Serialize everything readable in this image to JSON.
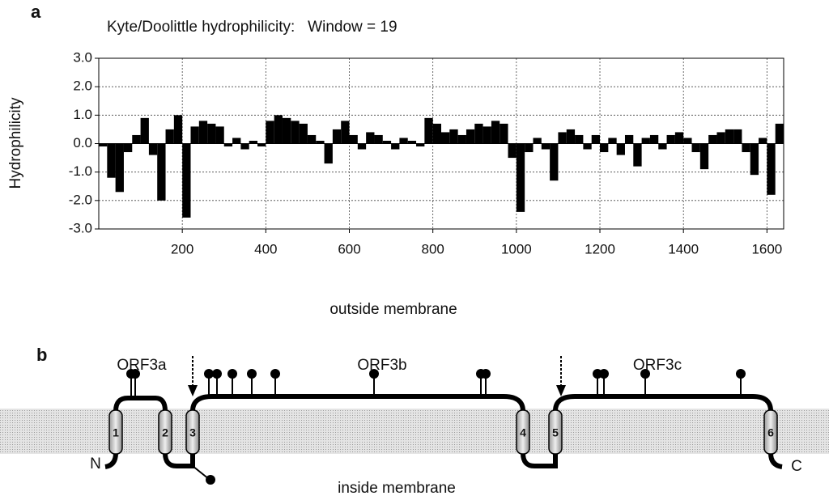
{
  "chart_data": {
    "type": "bar",
    "panel_label": "a",
    "title": "Kyte/Doolittle hydrophilicity:   Window = 19",
    "y_label": "Hydrophilicity",
    "color": "#000000",
    "grid": true,
    "xlim": [
      0,
      1640
    ],
    "xticks": [
      200,
      400,
      600,
      800,
      1000,
      1200,
      1400,
      1600
    ],
    "ylim": [
      -3,
      3
    ],
    "yticks": [
      {
        "value": -3,
        "label": "-3.0"
      },
      {
        "value": -2,
        "label": "-2.0"
      },
      {
        "value": -1,
        "label": "-1.0"
      },
      {
        "value": 0,
        "label": "0.0"
      },
      {
        "value": 1,
        "label": "1.0"
      },
      {
        "value": 2,
        "label": "2.0"
      },
      {
        "value": 3,
        "label": "3.0"
      }
    ],
    "x": [
      10,
      30,
      50,
      70,
      90,
      110,
      130,
      150,
      170,
      190,
      210,
      230,
      250,
      270,
      290,
      310,
      330,
      350,
      370,
      390,
      410,
      430,
      450,
      470,
      490,
      510,
      530,
      550,
      570,
      590,
      610,
      630,
      650,
      670,
      690,
      710,
      730,
      750,
      770,
      790,
      810,
      830,
      850,
      870,
      890,
      910,
      930,
      950,
      970,
      990,
      1010,
      1030,
      1050,
      1070,
      1090,
      1110,
      1130,
      1150,
      1170,
      1190,
      1210,
      1230,
      1250,
      1270,
      1290,
      1310,
      1330,
      1350,
      1370,
      1390,
      1410,
      1430,
      1450,
      1470,
      1490,
      1510,
      1530,
      1550,
      1570,
      1590,
      1610,
      1630
    ],
    "values": [
      -0.1,
      -1.2,
      -1.7,
      -0.3,
      0.3,
      0.9,
      -0.4,
      -2.0,
      0.5,
      1.0,
      -2.6,
      0.6,
      0.8,
      0.7,
      0.6,
      -0.1,
      0.2,
      -0.2,
      0.1,
      -0.1,
      0.8,
      1.0,
      0.9,
      0.8,
      0.7,
      0.3,
      0.1,
      -0.7,
      0.5,
      0.8,
      0.3,
      -0.2,
      0.4,
      0.3,
      0.1,
      -0.2,
      0.2,
      0.1,
      -0.1,
      0.9,
      0.7,
      0.4,
      0.5,
      0.3,
      0.5,
      0.7,
      0.6,
      0.8,
      0.7,
      -0.5,
      -2.4,
      -0.3,
      0.2,
      -0.2,
      -1.3,
      0.4,
      0.5,
      0.3,
      -0.2,
      0.3,
      -0.3,
      0.2,
      -0.4,
      0.3,
      -0.8,
      0.2,
      0.3,
      -0.2,
      0.3,
      0.4,
      0.2,
      -0.3,
      -0.9,
      0.3,
      0.4,
      0.5,
      0.5,
      -0.3,
      -1.1,
      0.2,
      -1.8,
      0.7
    ]
  },
  "panel_b": {
    "label": "b",
    "outside": "outside membrane",
    "inside": "inside membrane",
    "orfs": [
      "ORF3a",
      "ORF3b",
      "ORF3c"
    ],
    "helices": [
      "1",
      "2",
      "3",
      "4",
      "5",
      "6"
    ],
    "n_terminus": "N",
    "c_terminus": "C"
  }
}
